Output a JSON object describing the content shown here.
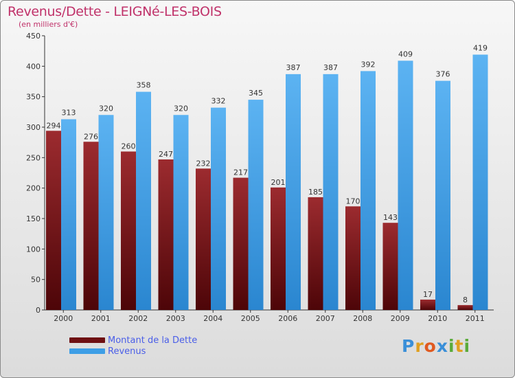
{
  "title": "Revenus/Dette - LEIGNé-LES-BOIS",
  "subtitle": "(en milliers d'€)",
  "colors": {
    "debt": "#6e0f12",
    "revenue": "#3d9ee6",
    "title": "#c0326a",
    "legend_text": "#4a5ee8"
  },
  "legend": {
    "debt_label": "Montant de la Dette",
    "revenue_label": "Revenus"
  },
  "logo": {
    "text": "Proxiti",
    "letters": [
      "P",
      "r",
      "o",
      "x",
      "i",
      "t",
      "i"
    ]
  },
  "chart_data": {
    "type": "bar",
    "title": "Revenus/Dette - LEIGNé-LES-BOIS",
    "subtitle": "(en milliers d'€)",
    "categories": [
      "2000",
      "2001",
      "2002",
      "2003",
      "2004",
      "2005",
      "2006",
      "2007",
      "2008",
      "2009",
      "2010",
      "2011"
    ],
    "series": [
      {
        "name": "Montant de la Dette",
        "values": [
          294,
          276,
          260,
          247,
          232,
          217,
          201,
          185,
          170,
          143,
          17,
          8
        ]
      },
      {
        "name": "Revenus",
        "values": [
          313,
          320,
          358,
          320,
          332,
          345,
          387,
          387,
          392,
          409,
          376,
          419
        ]
      }
    ],
    "ylim": [
      0,
      450
    ],
    "yticks": [
      0,
      50,
      100,
      150,
      200,
      250,
      300,
      350,
      400,
      450
    ],
    "grid": false,
    "legend_position": "bottom-left"
  }
}
